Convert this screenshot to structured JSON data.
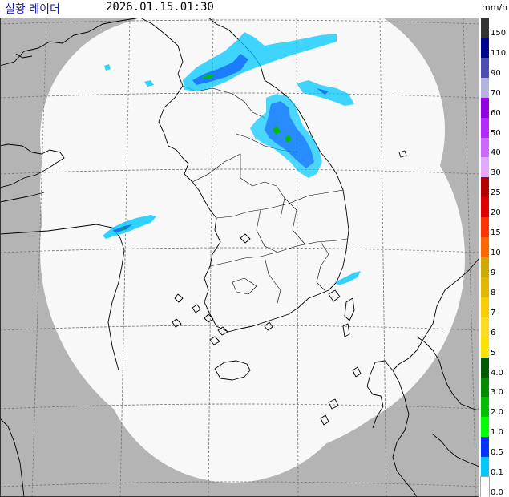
{
  "header": {
    "title": "실황 레이더",
    "timestamp": "2026.01.15.01:30",
    "unit": "mm/h"
  },
  "legend": {
    "entries": [
      {
        "label": "150",
        "color": "#333333"
      },
      {
        "label": "110",
        "color": "#000390"
      },
      {
        "label": "90",
        "color": "#4c4eb1"
      },
      {
        "label": "70",
        "color": "#b3b4de"
      },
      {
        "label": "60",
        "color": "#9300e4"
      },
      {
        "label": "50",
        "color": "#b329ff"
      },
      {
        "label": "40",
        "color": "#c969ff"
      },
      {
        "label": "30",
        "color": "#e0a9ff"
      },
      {
        "label": "25",
        "color": "#b40000"
      },
      {
        "label": "20",
        "color": "#e00000"
      },
      {
        "label": "15",
        "color": "#ff3300"
      },
      {
        "label": "10",
        "color": "#ff6600"
      },
      {
        "label": "9",
        "color": "#ccaa00"
      },
      {
        "label": "8",
        "color": "#e0b900"
      },
      {
        "label": "7",
        "color": "#f9cd00"
      },
      {
        "label": "6",
        "color": "#ffdc1f"
      },
      {
        "label": "5",
        "color": "#ffe100"
      },
      {
        "label": "4.0",
        "color": "#005a00"
      },
      {
        "label": "3.0",
        "color": "#008c00"
      },
      {
        "label": "2.0",
        "color": "#00be00"
      },
      {
        "label": "1.0",
        "color": "#00ff00"
      },
      {
        "label": "0.5",
        "color": "#0033ff"
      },
      {
        "label": "0.1",
        "color": "#00c8ff"
      },
      {
        "label": "0.0",
        "color": "#ffffff"
      }
    ]
  },
  "colors": {
    "outside_coverage": "#b4b4b4",
    "coverage": "#f8f8f8",
    "coastline": "#000000",
    "grid": "#777777",
    "title_color": "#1a1ab0"
  },
  "icons": [
    "radar-coverage-map"
  ]
}
